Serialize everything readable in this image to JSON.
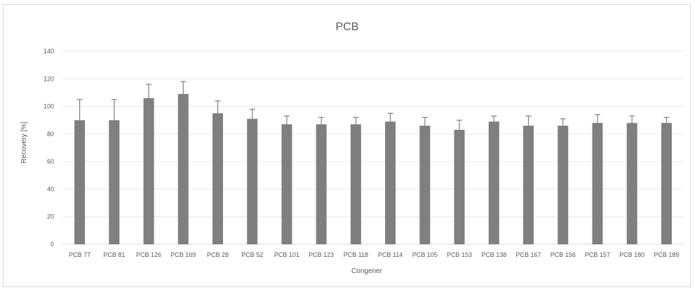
{
  "chart_data": {
    "type": "bar",
    "title": "PCB",
    "xlabel": "Congener",
    "ylabel": "Recovery [%]",
    "ylim": [
      0,
      140
    ],
    "yticks": [
      0,
      20,
      40,
      60,
      80,
      100,
      120,
      140
    ],
    "grid": true,
    "categories": [
      "PCB 77",
      "PCB 81",
      "PCB 126",
      "PCB 169",
      "PCB 28",
      "PCB 52",
      "PCB 101",
      "PCB 123",
      "PCB 118",
      "PCB 114",
      "PCB 105",
      "PCB 153",
      "PCB 138",
      "PCB 167",
      "PCB 156",
      "PCB 157",
      "PCB 180",
      "PCB 189"
    ],
    "values": [
      90,
      90,
      106,
      109,
      95,
      91,
      87,
      87,
      87,
      89,
      86,
      83,
      89,
      86,
      86,
      88,
      88,
      88
    ],
    "error_upper": [
      105,
      105,
      116,
      118,
      104,
      98,
      93,
      92,
      92,
      95,
      92,
      90,
      93,
      93,
      91,
      94,
      93,
      92
    ],
    "colors": {
      "bar": "#7f7f7f",
      "grid": "#e6e6e6",
      "text": "#595959"
    }
  }
}
